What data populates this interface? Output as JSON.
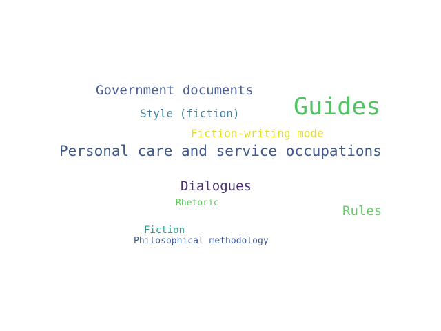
{
  "words": [
    {
      "key": "government",
      "text": "Government documents",
      "color": "#4a5d94"
    },
    {
      "key": "guides",
      "text": "Guides",
      "color": "#53c466"
    },
    {
      "key": "style",
      "text": "Style (fiction)",
      "color": "#3b7d99"
    },
    {
      "key": "fiction_mode",
      "text": "Fiction-writing mode",
      "color": "#e0dc2a"
    },
    {
      "key": "personal",
      "text": "Personal care and service occupations",
      "color": "#3e5a8c"
    },
    {
      "key": "dialogues",
      "text": "Dialogues",
      "color": "#4a2f72"
    },
    {
      "key": "rhetoric",
      "text": "Rhetoric",
      "color": "#5cc65a"
    },
    {
      "key": "rules",
      "text": "Rules",
      "color": "#66cc66"
    },
    {
      "key": "fiction",
      "text": "Fiction",
      "color": "#1f9e94"
    },
    {
      "key": "philosophy",
      "text": "Philosophical methodology",
      "color": "#3e5a8c"
    }
  ]
}
